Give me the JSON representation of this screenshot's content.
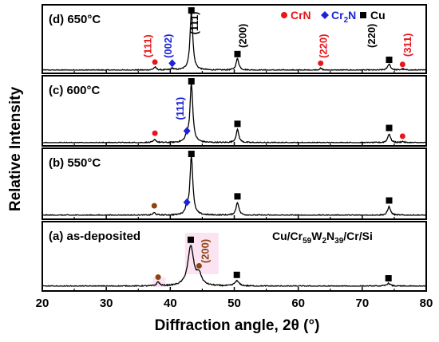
{
  "chart_data": {
    "type": "line",
    "xlabel": "Diffraction angle, 2θ (°)",
    "ylabel": "Relative Intensity",
    "xlim": [
      20,
      80
    ],
    "xticks": [
      20,
      30,
      40,
      50,
      60,
      70,
      80
    ],
    "sample": {
      "prefix": "Cu/Cr",
      "s1": "59",
      "m2": "W",
      "s2": "2",
      "m3": "N",
      "s3": "39",
      "suffix": "/Cr/Si"
    },
    "legend": [
      {
        "marker": "circle",
        "label": "CrN",
        "color": "#e8161b"
      },
      {
        "marker": "diamond",
        "label": "Cr",
        "sub": "2",
        "tail": "N",
        "color": "#1c24d6"
      },
      {
        "marker": "square",
        "label": "Cu",
        "color": "#000000"
      }
    ],
    "panels": [
      {
        "label": "(d) 650°C",
        "peaks": [
          {
            "x": 37.6,
            "h": 0.05
          },
          {
            "x": 40.3,
            "h": 0.03
          },
          {
            "x": 43.3,
            "h": 1.0
          },
          {
            "x": 50.5,
            "h": 0.2
          },
          {
            "x": 63.5,
            "h": 0.03
          },
          {
            "x": 74.2,
            "h": 0.11
          },
          {
            "x": 76.3,
            "h": 0.02
          }
        ],
        "markers": [
          {
            "x": 37.6,
            "y": 0.14,
            "type": "circle",
            "color": "#e8161b"
          },
          {
            "x": 40.3,
            "y": 0.12,
            "type": "diamond",
            "color": "#1c24d6"
          },
          {
            "x": 43.3,
            "y": 1.04,
            "type": "square",
            "color": "#000000"
          },
          {
            "x": 50.5,
            "y": 0.28,
            "type": "square",
            "color": "#000000"
          },
          {
            "x": 63.5,
            "y": 0.12,
            "type": "circle",
            "color": "#e8161b"
          },
          {
            "x": 74.2,
            "y": 0.18,
            "type": "square",
            "color": "#000000"
          },
          {
            "x": 76.3,
            "y": 0.1,
            "type": "circle",
            "color": "#e8161b"
          }
        ],
        "annotations": [
          {
            "text": "(111)",
            "x": 37.0,
            "y": 0.42,
            "color": "#e8161b"
          },
          {
            "text": "(002)",
            "x": 40.2,
            "y": 0.42,
            "color": "#1c24d6"
          },
          {
            "text": "(111)",
            "x": 44.3,
            "y": 0.82,
            "color": "#000000"
          },
          {
            "text": "(200)",
            "x": 51.9,
            "y": 0.6,
            "color": "#000000"
          },
          {
            "text": "(220)",
            "x": 64.5,
            "y": 0.42,
            "color": "#e8161b"
          },
          {
            "text": "(220)",
            "x": 72.0,
            "y": 0.6,
            "color": "#000000"
          },
          {
            "text": "(311)",
            "x": 77.6,
            "y": 0.44,
            "color": "#e8161b"
          }
        ]
      },
      {
        "label": "(c) 600°C",
        "peaks": [
          {
            "x": 37.6,
            "h": 0.05
          },
          {
            "x": 42.6,
            "h": 0.1
          },
          {
            "x": 43.3,
            "h": 1.0
          },
          {
            "x": 50.5,
            "h": 0.22
          },
          {
            "x": 74.2,
            "h": 0.15
          },
          {
            "x": 76.3,
            "h": 0.02
          }
        ],
        "markers": [
          {
            "x": 37.6,
            "y": 0.16,
            "type": "circle",
            "color": "#e8161b"
          },
          {
            "x": 42.6,
            "y": 0.2,
            "type": "diamond",
            "color": "#1c24d6"
          },
          {
            "x": 43.3,
            "y": 1.04,
            "type": "square",
            "color": "#000000"
          },
          {
            "x": 50.5,
            "y": 0.32,
            "type": "square",
            "color": "#000000"
          },
          {
            "x": 74.2,
            "y": 0.25,
            "type": "square",
            "color": "#000000"
          },
          {
            "x": 76.3,
            "y": 0.11,
            "type": "circle",
            "color": "#e8161b"
          }
        ],
        "annotations": [
          {
            "text": "(111)",
            "x": 42.1,
            "y": 0.58,
            "color": "#1c24d6"
          }
        ]
      },
      {
        "label": "(b) 550°C",
        "peaks": [
          {
            "x": 37.5,
            "h": 0.04
          },
          {
            "x": 42.6,
            "h": 0.12
          },
          {
            "x": 43.3,
            "h": 1.0
          },
          {
            "x": 50.5,
            "h": 0.22
          },
          {
            "x": 74.2,
            "h": 0.15
          }
        ],
        "markers": [
          {
            "x": 37.5,
            "y": 0.16,
            "type": "circle",
            "color": "#8b4513"
          },
          {
            "x": 42.6,
            "y": 0.22,
            "type": "diamond",
            "color": "#1c24d6"
          },
          {
            "x": 43.3,
            "y": 1.04,
            "type": "square",
            "color": "#000000"
          },
          {
            "x": 50.5,
            "y": 0.32,
            "type": "square",
            "color": "#000000"
          },
          {
            "x": 74.2,
            "y": 0.25,
            "type": "square",
            "color": "#000000"
          }
        ],
        "annotations": []
      },
      {
        "label": "(a) as-deposited",
        "peaks": [
          {
            "x": 38.1,
            "h": 0.07
          },
          {
            "x": 43.2,
            "h": 0.7,
            "w": 0.55
          },
          {
            "x": 44.5,
            "h": 0.18,
            "w": 0.45
          },
          {
            "x": 50.4,
            "h": 0.09,
            "w": 0.4
          },
          {
            "x": 74.1,
            "h": 0.05,
            "w": 0.35
          }
        ],
        "markers": [
          {
            "x": 38.1,
            "y": 0.16,
            "type": "circle",
            "color": "#8b4513"
          },
          {
            "x": 43.2,
            "y": 0.82,
            "type": "square",
            "color": "#000000"
          },
          {
            "x": 44.5,
            "y": 0.36,
            "type": "circle",
            "color": "#8b4513"
          },
          {
            "x": 50.4,
            "y": 0.2,
            "type": "square",
            "color": "#000000"
          },
          {
            "x": 74.1,
            "y": 0.14,
            "type": "square",
            "color": "#000000"
          }
        ],
        "annotations": [
          {
            "text": "(200)",
            "x": 46.0,
            "y": 0.62,
            "color": "#8b4513"
          }
        ]
      }
    ]
  }
}
